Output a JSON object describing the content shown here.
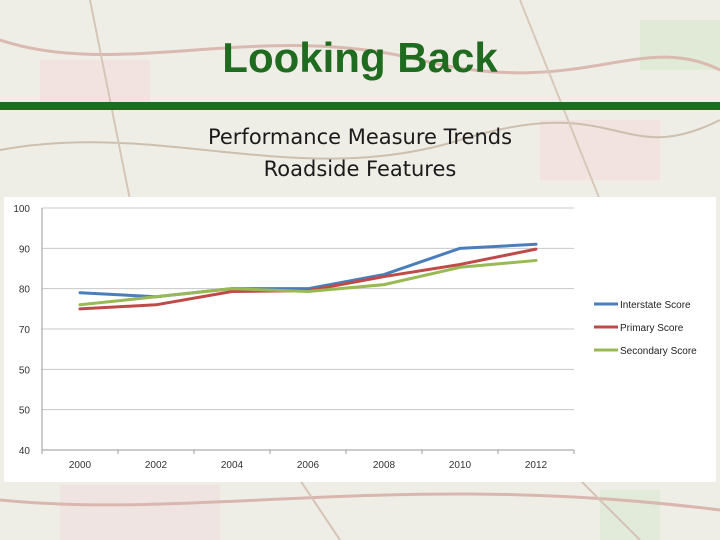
{
  "slide": {
    "title": "Looking Back",
    "subtitle_line1": "Performance Measure Trends",
    "subtitle_line2": "Roadside Features",
    "colors": {
      "title_green": "#1f6b1f"
    }
  },
  "chart_data": {
    "type": "line",
    "title": "",
    "xlabel": "",
    "ylabel": "",
    "categories": [
      "2000",
      "2002",
      "2004",
      "2006",
      "2008",
      "2010",
      "2012"
    ],
    "y_ticks": [
      "100",
      "90",
      "80",
      "70",
      "50",
      "50",
      "40"
    ],
    "ylim": [
      40,
      100
    ],
    "grid": true,
    "legend_position": "right",
    "series": [
      {
        "name": "Interstate Score",
        "color": "#4a7ebb",
        "values": [
          79,
          78,
          80,
          80,
          83.5,
          90,
          91
        ]
      },
      {
        "name": "Primary Score",
        "color": "#be4b48",
        "values": [
          75,
          76,
          79.3,
          79.5,
          83,
          86,
          89.8
        ]
      },
      {
        "name": "Secondary Score",
        "color": "#98b954",
        "values": [
          76,
          78,
          80,
          79.3,
          81,
          85.3,
          87
        ]
      }
    ]
  }
}
